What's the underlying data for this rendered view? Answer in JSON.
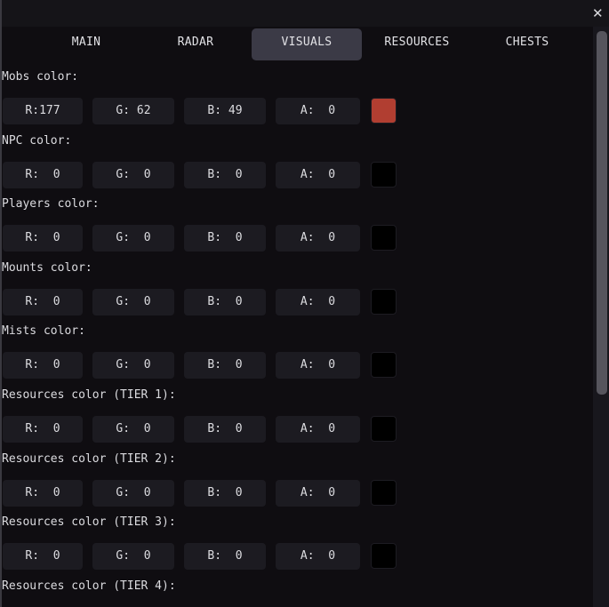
{
  "window": {
    "close_icon": "close-x-icon"
  },
  "tabs": [
    {
      "label": "MAIN",
      "active": false
    },
    {
      "label": "RADAR",
      "active": false
    },
    {
      "label": "VISUALS",
      "active": true
    },
    {
      "label": "RESOURCES",
      "active": false
    },
    {
      "label": "CHESTS",
      "active": false
    }
  ],
  "colors": [
    {
      "label": "Mobs color:",
      "r": "R:177",
      "g": "G: 62",
      "b": "B: 49",
      "a": "A:  0",
      "swatch": "#b13e31"
    },
    {
      "label": "NPC color:",
      "r": "R:  0",
      "g": "G:  0",
      "b": "B:  0",
      "a": "A:  0",
      "swatch": "#000000"
    },
    {
      "label": "Players color:",
      "r": "R:  0",
      "g": "G:  0",
      "b": "B:  0",
      "a": "A:  0",
      "swatch": "#000000"
    },
    {
      "label": "Mounts color:",
      "r": "R:  0",
      "g": "G:  0",
      "b": "B:  0",
      "a": "A:  0",
      "swatch": "#000000"
    },
    {
      "label": "Mists color:",
      "r": "R:  0",
      "g": "G:  0",
      "b": "B:  0",
      "a": "A:  0",
      "swatch": "#000000"
    },
    {
      "label": "Resources color (TIER 1):",
      "r": "R:  0",
      "g": "G:  0",
      "b": "B:  0",
      "a": "A:  0",
      "swatch": "#000000"
    },
    {
      "label": "Resources color (TIER 2):",
      "r": "R:  0",
      "g": "G:  0",
      "b": "B:  0",
      "a": "A:  0",
      "swatch": "#000000"
    },
    {
      "label": "Resources color (TIER 3):",
      "r": "R:  0",
      "g": "G:  0",
      "b": "B:  0",
      "a": "A:  0",
      "swatch": "#000000"
    },
    {
      "label": "Resources color (TIER 4):",
      "r": "R:  0",
      "g": "G:  0",
      "b": "B:  0",
      "a": "A:  0",
      "swatch": "#000000"
    }
  ],
  "scrollbar": {
    "position_fraction": 0.0,
    "visible_fraction": 0.63
  }
}
